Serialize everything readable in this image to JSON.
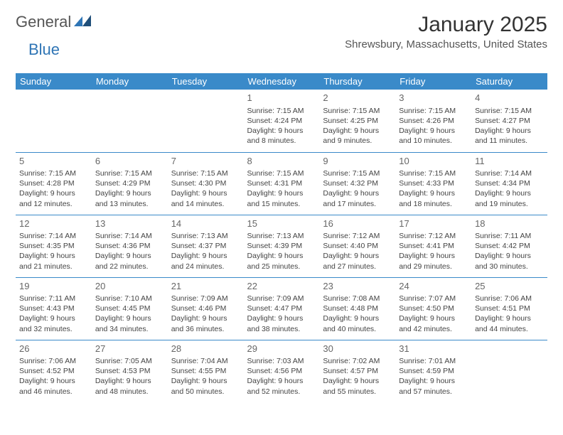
{
  "brand": {
    "general": "General",
    "blue": "Blue"
  },
  "title": "January 2025",
  "location": "Shrewsbury, Massachusetts, United States",
  "colors": {
    "header_bg": "#3a8ac9",
    "header_text": "#ffffff",
    "border": "#3a8ac9",
    "text": "#444444",
    "title": "#333333",
    "brand_gray": "#555555",
    "brand_blue": "#2f75b5",
    "background": "#ffffff"
  },
  "typography": {
    "title_fontsize": 30,
    "location_fontsize": 15,
    "header_fontsize": 13,
    "daynum_fontsize": 13,
    "cell_fontsize": 10.5
  },
  "weekdays": [
    "Sunday",
    "Monday",
    "Tuesday",
    "Wednesday",
    "Thursday",
    "Friday",
    "Saturday"
  ],
  "weeks": [
    [
      null,
      null,
      null,
      {
        "n": "1",
        "sr": "7:15 AM",
        "ss": "4:24 PM",
        "dl": "9 hours and 8 minutes."
      },
      {
        "n": "2",
        "sr": "7:15 AM",
        "ss": "4:25 PM",
        "dl": "9 hours and 9 minutes."
      },
      {
        "n": "3",
        "sr": "7:15 AM",
        "ss": "4:26 PM",
        "dl": "9 hours and 10 minutes."
      },
      {
        "n": "4",
        "sr": "7:15 AM",
        "ss": "4:27 PM",
        "dl": "9 hours and 11 minutes."
      }
    ],
    [
      {
        "n": "5",
        "sr": "7:15 AM",
        "ss": "4:28 PM",
        "dl": "9 hours and 12 minutes."
      },
      {
        "n": "6",
        "sr": "7:15 AM",
        "ss": "4:29 PM",
        "dl": "9 hours and 13 minutes."
      },
      {
        "n": "7",
        "sr": "7:15 AM",
        "ss": "4:30 PM",
        "dl": "9 hours and 14 minutes."
      },
      {
        "n": "8",
        "sr": "7:15 AM",
        "ss": "4:31 PM",
        "dl": "9 hours and 15 minutes."
      },
      {
        "n": "9",
        "sr": "7:15 AM",
        "ss": "4:32 PM",
        "dl": "9 hours and 17 minutes."
      },
      {
        "n": "10",
        "sr": "7:15 AM",
        "ss": "4:33 PM",
        "dl": "9 hours and 18 minutes."
      },
      {
        "n": "11",
        "sr": "7:14 AM",
        "ss": "4:34 PM",
        "dl": "9 hours and 19 minutes."
      }
    ],
    [
      {
        "n": "12",
        "sr": "7:14 AM",
        "ss": "4:35 PM",
        "dl": "9 hours and 21 minutes."
      },
      {
        "n": "13",
        "sr": "7:14 AM",
        "ss": "4:36 PM",
        "dl": "9 hours and 22 minutes."
      },
      {
        "n": "14",
        "sr": "7:13 AM",
        "ss": "4:37 PM",
        "dl": "9 hours and 24 minutes."
      },
      {
        "n": "15",
        "sr": "7:13 AM",
        "ss": "4:39 PM",
        "dl": "9 hours and 25 minutes."
      },
      {
        "n": "16",
        "sr": "7:12 AM",
        "ss": "4:40 PM",
        "dl": "9 hours and 27 minutes."
      },
      {
        "n": "17",
        "sr": "7:12 AM",
        "ss": "4:41 PM",
        "dl": "9 hours and 29 minutes."
      },
      {
        "n": "18",
        "sr": "7:11 AM",
        "ss": "4:42 PM",
        "dl": "9 hours and 30 minutes."
      }
    ],
    [
      {
        "n": "19",
        "sr": "7:11 AM",
        "ss": "4:43 PM",
        "dl": "9 hours and 32 minutes."
      },
      {
        "n": "20",
        "sr": "7:10 AM",
        "ss": "4:45 PM",
        "dl": "9 hours and 34 minutes."
      },
      {
        "n": "21",
        "sr": "7:09 AM",
        "ss": "4:46 PM",
        "dl": "9 hours and 36 minutes."
      },
      {
        "n": "22",
        "sr": "7:09 AM",
        "ss": "4:47 PM",
        "dl": "9 hours and 38 minutes."
      },
      {
        "n": "23",
        "sr": "7:08 AM",
        "ss": "4:48 PM",
        "dl": "9 hours and 40 minutes."
      },
      {
        "n": "24",
        "sr": "7:07 AM",
        "ss": "4:50 PM",
        "dl": "9 hours and 42 minutes."
      },
      {
        "n": "25",
        "sr": "7:06 AM",
        "ss": "4:51 PM",
        "dl": "9 hours and 44 minutes."
      }
    ],
    [
      {
        "n": "26",
        "sr": "7:06 AM",
        "ss": "4:52 PM",
        "dl": "9 hours and 46 minutes."
      },
      {
        "n": "27",
        "sr": "7:05 AM",
        "ss": "4:53 PM",
        "dl": "9 hours and 48 minutes."
      },
      {
        "n": "28",
        "sr": "7:04 AM",
        "ss": "4:55 PM",
        "dl": "9 hours and 50 minutes."
      },
      {
        "n": "29",
        "sr": "7:03 AM",
        "ss": "4:56 PM",
        "dl": "9 hours and 52 minutes."
      },
      {
        "n": "30",
        "sr": "7:02 AM",
        "ss": "4:57 PM",
        "dl": "9 hours and 55 minutes."
      },
      {
        "n": "31",
        "sr": "7:01 AM",
        "ss": "4:59 PM",
        "dl": "9 hours and 57 minutes."
      },
      null
    ]
  ],
  "labels": {
    "sunrise": "Sunrise: ",
    "sunset": "Sunset: ",
    "daylight": "Daylight: "
  }
}
